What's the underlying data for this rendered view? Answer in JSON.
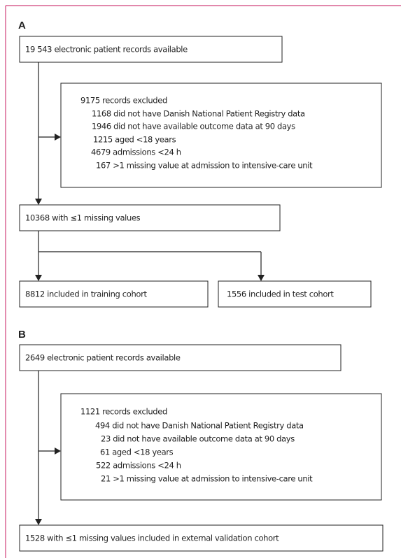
{
  "panels": [
    {
      "label": "A",
      "start": "19 543 electronic patient records available",
      "excluded": {
        "title": "9175 records excluded",
        "items": [
          "1168 did not have Danish National Patient Registry data",
          "1946 did not have available outcome data at 90 days",
          "1215 aged <18 years",
          "4679 admissions <24 h",
          "167 >1 missing value at admission to intensive-care unit"
        ]
      },
      "retained": "10368 with ≤1 missing values",
      "splits": [
        "8812 included in training cohort",
        "1556 included in test cohort"
      ]
    },
    {
      "label": "B",
      "start": "2649 electronic patient records available",
      "excluded": {
        "title": "1121 records excluded",
        "items": [
          "494 did not have Danish National Patient Registry data",
          "23 did not have available outcome data at 90 days",
          "61 aged <18 years",
          "522 admissions <24 h",
          "21 >1 missing value at admission to intensive-care unit"
        ]
      },
      "retained": "1528 with ≤1 missing values included in external validation cohort"
    }
  ]
}
